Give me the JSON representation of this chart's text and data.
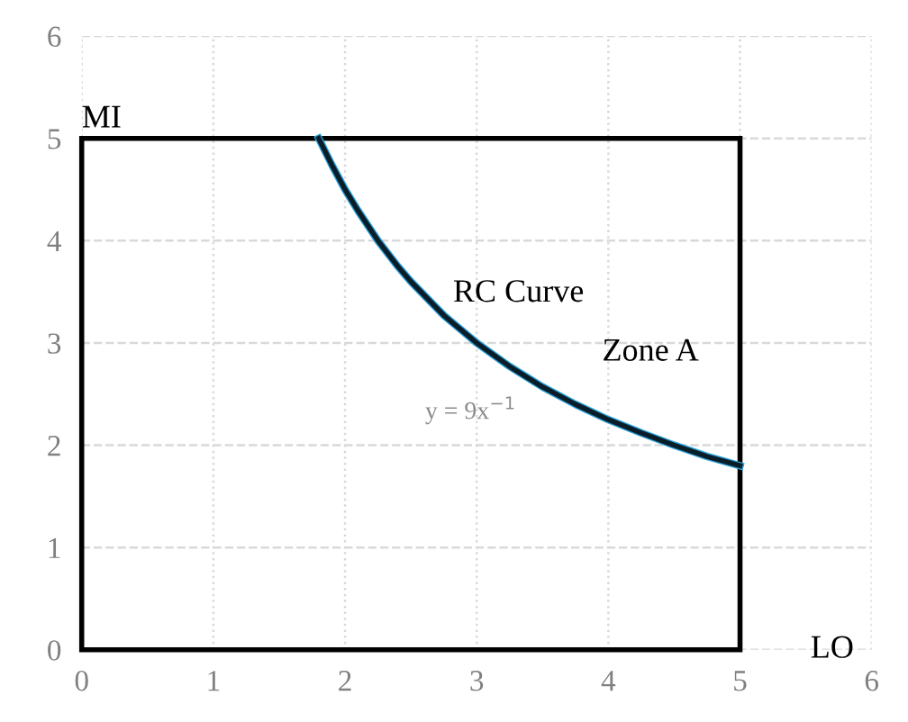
{
  "chart_data": {
    "type": "line",
    "xlim": [
      0,
      6
    ],
    "ylim": [
      0,
      6
    ],
    "xticks": [
      0,
      1,
      2,
      3,
      4,
      5,
      6
    ],
    "yticks": [
      0,
      1,
      2,
      3,
      4,
      5,
      6
    ],
    "grid": true,
    "marker": "none",
    "line_style": "solid",
    "series": [
      {
        "color": "#0a1e2a",
        "x": [
          1.8,
          1.9,
          2,
          2.1,
          2.25,
          2.4,
          2.5,
          2.75,
          3,
          3.25,
          3.5,
          3.75,
          4,
          4.25,
          4.5,
          4.75,
          5
        ],
        "values": [
          5,
          4.74,
          4.5,
          4.29,
          4,
          3.75,
          3.6,
          3.27,
          3,
          2.77,
          2.57,
          2.4,
          2.25,
          2.12,
          2,
          1.89,
          1.8
        ]
      }
    ],
    "annotations": [
      "MI",
      "LO",
      "RC Curve",
      "Zone A",
      "y = 9x$^{−1}$"
    ]
  }
}
